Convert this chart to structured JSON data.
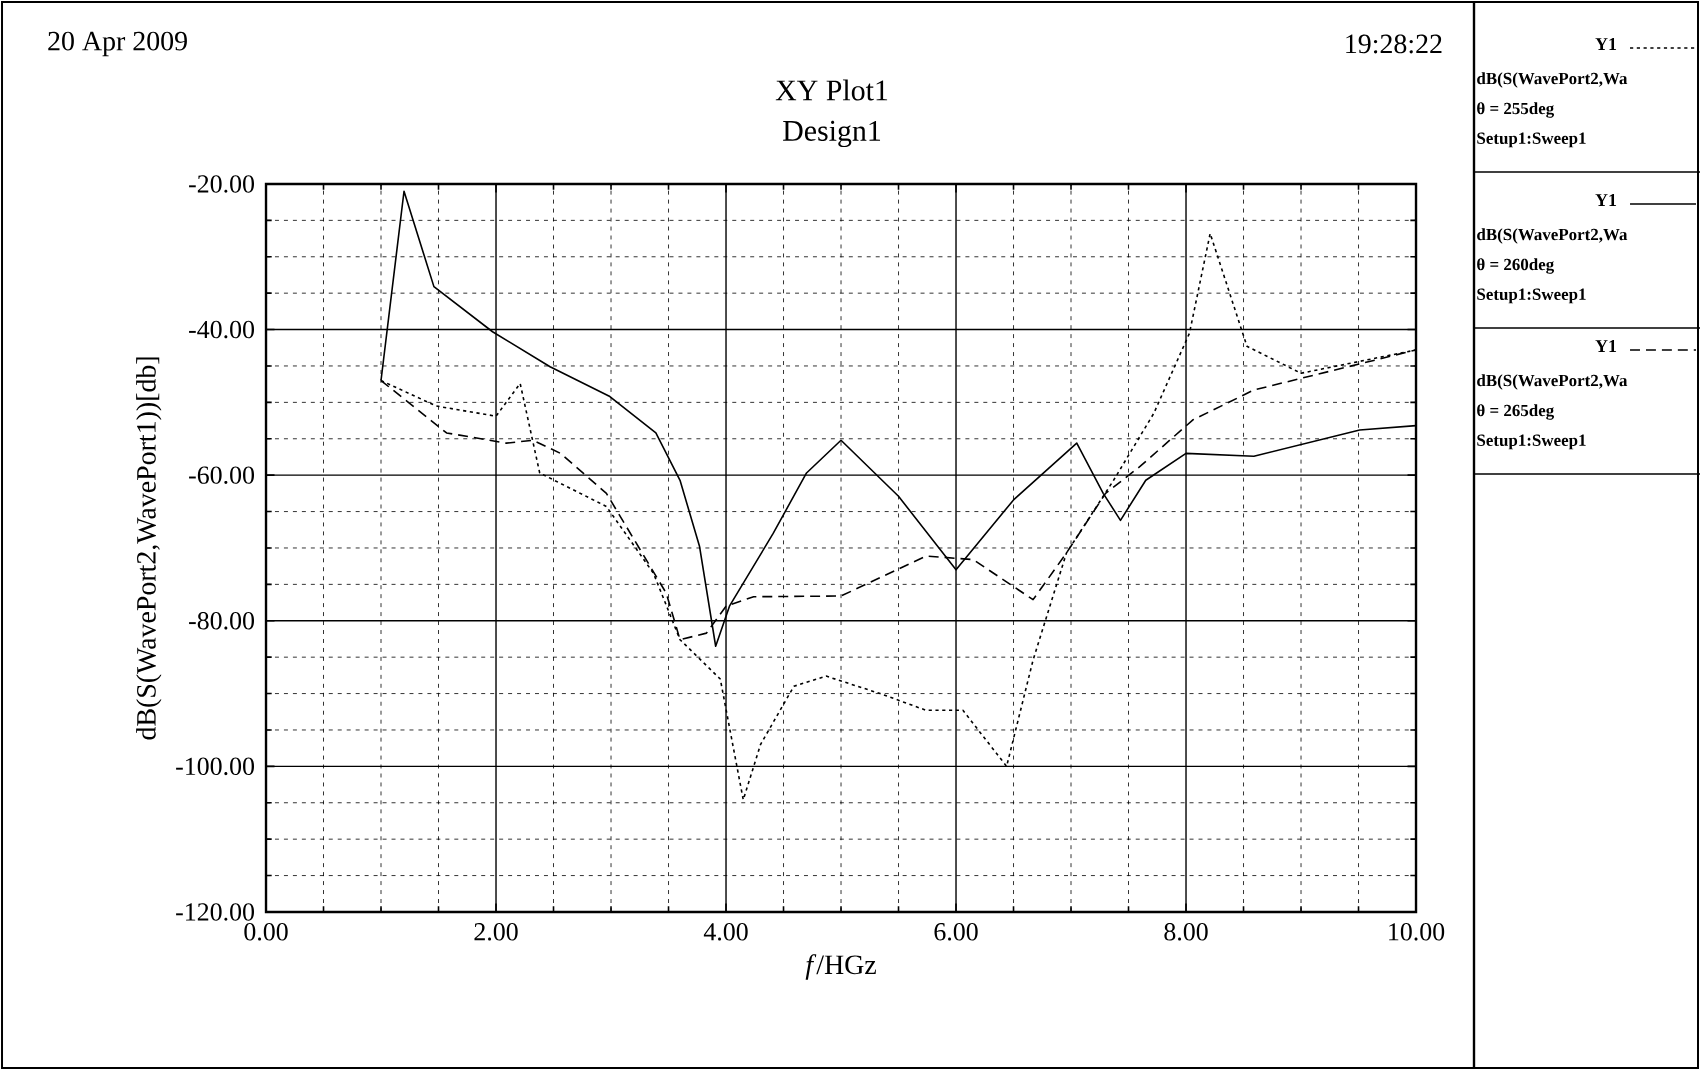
{
  "chart_data": {
    "type": "line",
    "title": "XY Plot1",
    "subtitle": "Design1",
    "xlabel": "*f*/HGz",
    "ylabel": "dB(S(WavePort2,WavePort1))[db]",
    "xlim": [
      0,
      10
    ],
    "ylim": [
      -120,
      -20
    ],
    "xticks": [
      {
        "value": 0,
        "label": "0.00"
      },
      {
        "value": 2,
        "label": "2.00"
      },
      {
        "value": 4,
        "label": "4.00"
      },
      {
        "value": 6,
        "label": "6.00"
      },
      {
        "value": 8,
        "label": "8.00"
      },
      {
        "value": 10,
        "label": "10.00"
      }
    ],
    "yticks": [
      {
        "value": -120,
        "label": "-120.00"
      },
      {
        "value": -100,
        "label": "-100.00"
      },
      {
        "value": -80,
        "label": "-80.00"
      },
      {
        "value": -60,
        "label": "-60.00"
      },
      {
        "value": -40,
        "label": "-40.00"
      },
      {
        "value": -20,
        "label": "-20.00"
      }
    ],
    "grid": true,
    "legend": "right",
    "series": [
      {
        "name": "Y1",
        "color": "#000000",
        "line_style": "dotted",
        "x": [
          1.0,
          1.48,
          2.0,
          2.21,
          2.38,
          2.96,
          3.37,
          3.6,
          3.95,
          4.15,
          4.3,
          4.59,
          4.87,
          5.34,
          5.74,
          6.06,
          6.44,
          6.67,
          6.96,
          7.37,
          7.72,
          8.03,
          8.21,
          8.53,
          9.0,
          10.0
        ],
        "values": [
          -47,
          -50.5,
          -51.9,
          -47.4,
          -59.7,
          -64.3,
          -73.5,
          -82.6,
          -88,
          -104.6,
          -97,
          -89,
          -87.6,
          -90,
          -92.3,
          -92.3,
          -100,
          -85.4,
          -70.7,
          -60.7,
          -51.5,
          -40.5,
          -26.8,
          -42.3,
          -46,
          -42.8
        ]
      },
      {
        "name": "Y1",
        "color": "#000000",
        "line_style": "solid",
        "x": [
          1.0,
          1.2,
          1.46,
          1.97,
          2.47,
          2.99,
          3.39,
          3.6,
          3.77,
          3.91,
          4.03,
          4.41,
          4.7,
          5.0,
          5.5,
          6.0,
          6.5,
          7.05,
          7.28,
          7.43,
          7.65,
          8.0,
          8.59,
          9.51,
          10.0
        ],
        "values": [
          -47,
          -21,
          -34.1,
          -40.3,
          -45.1,
          -49.2,
          -54.2,
          -60.7,
          -69.8,
          -83.5,
          -78,
          -68,
          -59.7,
          -55.2,
          -62.9,
          -73,
          -63.4,
          -55.6,
          -62.5,
          -66.2,
          -60.7,
          -57,
          -57.4,
          -53.8,
          -53.2
        ]
      },
      {
        "name": "Y1",
        "color": "#000000",
        "line_style": "dashed",
        "x": [
          1.0,
          1.57,
          2.09,
          2.32,
          2.56,
          2.96,
          3.48,
          3.6,
          3.83,
          4.0,
          4.24,
          5.0,
          5.74,
          6.15,
          6.67,
          6.96,
          7.3,
          7.6,
          8.06,
          8.59,
          10.0
        ],
        "values": [
          -47,
          -54.2,
          -55.6,
          -55.2,
          -57,
          -62.5,
          -76.2,
          -82.6,
          -81.7,
          -78,
          -76.7,
          -76.6,
          -71.1,
          -71.6,
          -77.1,
          -70.7,
          -62.5,
          -58.8,
          -52.4,
          -48.3,
          -42.8
        ]
      }
    ],
    "annotations": [
      "20 Apr 2009",
      "19:28:22",
      "dB(S(WavePort2,Wa",
      "θ = 255deg",
      "Setup1:Sweep1",
      "dB(S(WavePort2,Wa",
      "θ = 260deg",
      "Setup1:Sweep1",
      "dB(S(WavePort2,Wa",
      "θ = 265deg",
      "Setup1:Sweep1"
    ]
  }
}
